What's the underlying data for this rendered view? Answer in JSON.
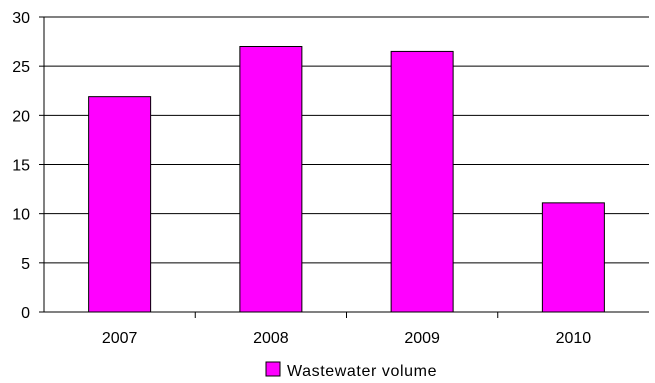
{
  "chart_data": {
    "type": "bar",
    "categories": [
      "2007",
      "2008",
      "2009",
      "2010"
    ],
    "series": [
      {
        "name": "Wastewater volume",
        "values": [
          21.9,
          27.0,
          26.5,
          11.1
        ],
        "color": "#ff00ff"
      }
    ],
    "ylim": [
      0,
      30
    ],
    "yticks": [
      "0",
      "5",
      "10",
      "15",
      "20",
      "25",
      "30"
    ],
    "grid": true,
    "legend_position": "bottom",
    "title": "",
    "xlabel": "",
    "ylabel": ""
  }
}
